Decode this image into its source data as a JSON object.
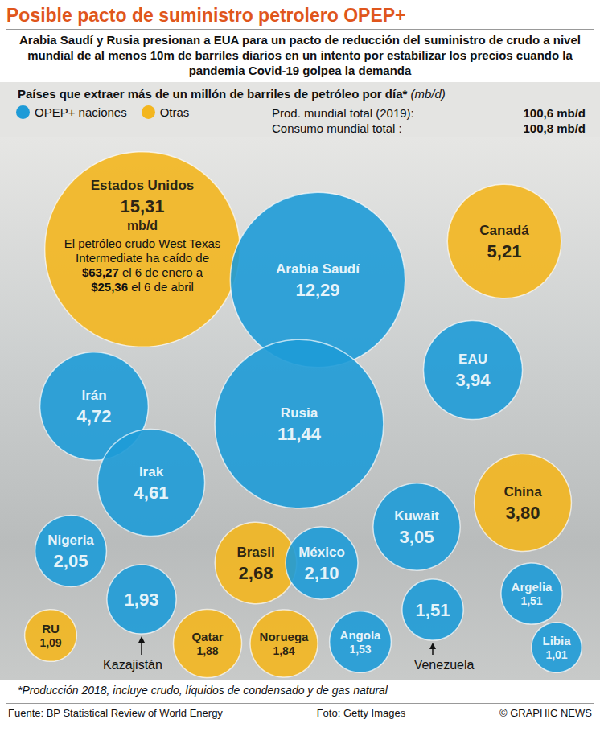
{
  "chart_data": {
    "type": "bubble",
    "title": "Posible pacto de suministro petrolero OPEP+",
    "subtitle": "Arabia Saudí y Rusia presionan a EUA para un pacto de reducción del suministro de crudo a nivel mundial de al menos 10m de barriles diarios en un intento por estabilizar los precios cuando la pandemia Covid-19 golpea la demanda",
    "heading": "Países que extraer más de un millón de barriles de petróleo por día*",
    "heading_unit": "(mb/d)",
    "unit": "mb/d",
    "stats": [
      {
        "label": "Prod. mundial total (2019):",
        "value_label": "100,6 mb/d"
      },
      {
        "label": "Consumo mundial total :",
        "value_label": "100,8 mb/d"
      }
    ],
    "series": [
      {
        "name": "OPEP+ naciones",
        "color": "#1e9bd7",
        "categories": [
          "Arabia Saudí",
          "Rusia",
          "Irán",
          "Irak",
          "EAU",
          "Kuwait",
          "México",
          "Nigeria",
          "Kazajistán",
          "Angola",
          "Argelia",
          "Venezuela",
          "Libia"
        ],
        "values": [
          12.29,
          11.44,
          4.72,
          4.61,
          3.94,
          3.05,
          2.1,
          2.05,
          1.93,
          1.53,
          1.51,
          1.51,
          1.01
        ],
        "value_labels": [
          "12,29",
          "11,44",
          "4,72",
          "4,61",
          "3,94",
          "3,05",
          "2,10",
          "2,05",
          "1,93",
          "1,53",
          "1,51",
          "1,51",
          "1,01"
        ]
      },
      {
        "name": "Otras",
        "color": "#f3b61f",
        "categories": [
          "Estados Unidos",
          "Canadá",
          "China",
          "Brasil",
          "Qatar",
          "Noruega",
          "RU"
        ],
        "values": [
          15.31,
          5.21,
          3.8,
          2.68,
          1.88,
          1.84,
          1.09
        ],
        "value_labels": [
          "15,31",
          "5,21",
          "3,80",
          "2,68",
          "1,88",
          "1,84",
          "1,09"
        ]
      }
    ],
    "annotation": {
      "category": "Estados Unidos",
      "text": "El petróleo crudo West Texas Intermediate ha caído de $63,27 el 6 de enero a $25,36 el 6 de abril"
    },
    "footnote": "*Producción 2018, incluye crudo, líquidos de condensado y de gas natural",
    "source": "Fuente: BP Statistical Review of World Energy",
    "photo_credit": "Foto: Getty Images",
    "copyright": "© GRAPHIC NEWS",
    "data_labels": true,
    "tick_labels": false,
    "legend": "top-left"
  }
}
